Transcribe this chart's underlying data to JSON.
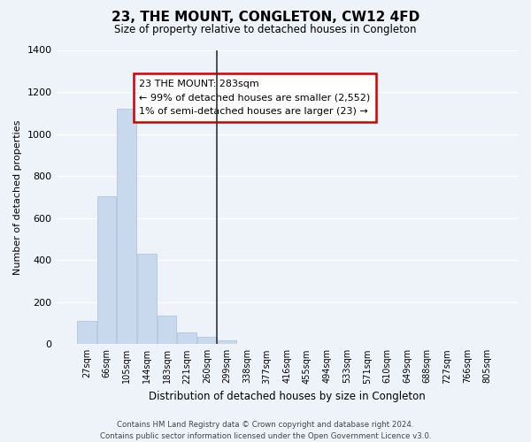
{
  "title": "23, THE MOUNT, CONGLETON, CW12 4FD",
  "subtitle": "Size of property relative to detached houses in Congleton",
  "xlabel": "Distribution of detached houses by size in Congleton",
  "ylabel": "Number of detached properties",
  "bar_values": [
    110,
    705,
    1120,
    430,
    135,
    57,
    35,
    17,
    0,
    0,
    0,
    0,
    0,
    0,
    0,
    0,
    0,
    0,
    0,
    0,
    0
  ],
  "bar_labels": [
    "27sqm",
    "66sqm",
    "105sqm",
    "144sqm",
    "183sqm",
    "221sqm",
    "260sqm",
    "299sqm",
    "338sqm",
    "377sqm",
    "416sqm",
    "455sqm",
    "494sqm",
    "533sqm",
    "571sqm",
    "610sqm",
    "649sqm",
    "688sqm",
    "727sqm",
    "766sqm",
    "805sqm"
  ],
  "bar_color": "#c9d9ed",
  "bar_edge_color": "#aabfd4",
  "ylim": [
    0,
    1400
  ],
  "yticks": [
    0,
    200,
    400,
    600,
    800,
    1000,
    1200,
    1400
  ],
  "prop_bin_index": 7,
  "annotation_title": "23 THE MOUNT: 283sqm",
  "annotation_line1": "← 99% of detached houses are smaller (2,552)",
  "annotation_line2": "1% of semi-detached houses are larger (23) →",
  "annotation_box_color": "#ffffff",
  "annotation_box_edge": "#cc0000",
  "vertical_line_color": "#333333",
  "footer_line1": "Contains HM Land Registry data © Crown copyright and database right 2024.",
  "footer_line2": "Contains public sector information licensed under the Open Government Licence v3.0.",
  "background_color": "#eef2f9",
  "plot_bg_color": "#eef2f9",
  "grid_color": "#ffffff"
}
